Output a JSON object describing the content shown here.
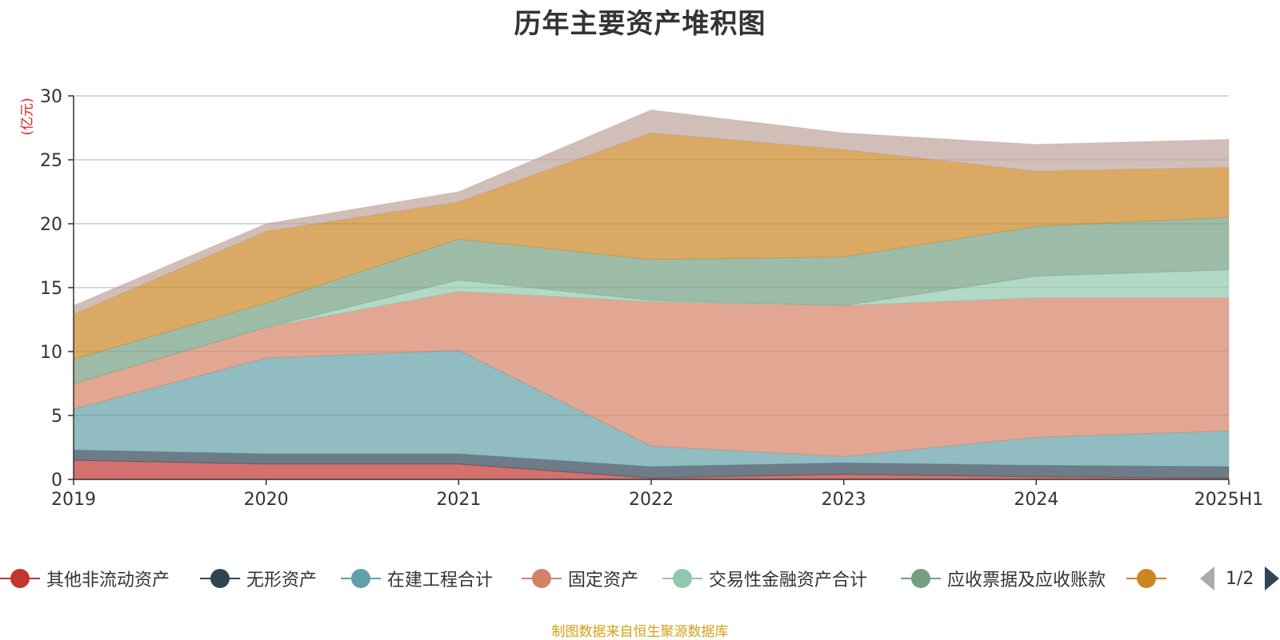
{
  "chart_data": {
    "type": "area",
    "title": "历年主要资产堆积图",
    "ylabel": "(亿元)",
    "xlabel": "",
    "categories": [
      "2019",
      "2020",
      "2021",
      "2022",
      "2023",
      "2024",
      "2025H1"
    ],
    "yticks": [
      "0",
      "5",
      "10",
      "15",
      "20",
      "25",
      "30"
    ],
    "ylim": [
      0,
      30
    ],
    "grid": true,
    "stacked": true,
    "series": [
      {
        "name": "其他非流动资产",
        "color": "#c23531",
        "values": [
          1.5,
          1.2,
          1.2,
          0.1,
          0.4,
          0.2,
          0.1
        ]
      },
      {
        "name": "无形资产",
        "color": "#2f4554",
        "values": [
          0.8,
          0.8,
          0.8,
          0.9,
          0.9,
          0.9,
          0.9
        ]
      },
      {
        "name": "在建工程合计",
        "color": "#61a0a8",
        "values": [
          3.2,
          7.5,
          8.1,
          1.6,
          0.5,
          2.2,
          2.8
        ]
      },
      {
        "name": "固定资产",
        "color": "#d48265",
        "values": [
          2.0,
          2.4,
          4.6,
          11.3,
          11.8,
          10.9,
          10.4
        ]
      },
      {
        "name": "交易性金融资产合计",
        "color": "#91c7ae",
        "values": [
          0.0,
          0.0,
          0.9,
          0.1,
          0.0,
          1.7,
          2.2
        ]
      },
      {
        "name": "应收票据及应收账款",
        "color": "#749f83",
        "values": [
          1.9,
          1.9,
          3.2,
          3.2,
          3.8,
          3.9,
          4.1
        ]
      },
      {
        "name": "",
        "color": "#ca8622",
        "values": [
          3.5,
          5.6,
          2.9,
          9.9,
          8.4,
          4.3,
          3.9
        ]
      },
      {
        "name": "",
        "color": "#bda29a",
        "values": [
          0.7,
          0.6,
          0.8,
          1.8,
          1.3,
          2.1,
          2.2
        ]
      }
    ]
  },
  "legend": {
    "page_indicator": "1/2"
  },
  "footer": {
    "source": "制图数据来自恒生聚源数据库"
  }
}
